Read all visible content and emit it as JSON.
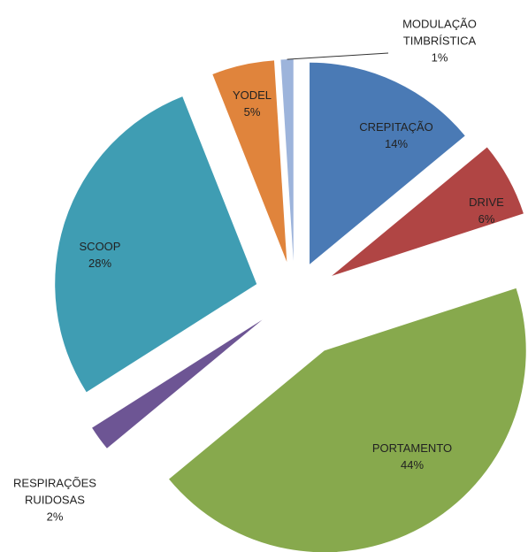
{
  "chart_data": {
    "type": "pie",
    "categories": [
      "CREPITAÇÃO",
      "DRIVE",
      "PORTAMENTO",
      "RESPIRAÇÕES RUIDOSAS",
      "SCOOP",
      "YODEL",
      "MODULAÇÃO TIMBRÍSTICA"
    ],
    "values": [
      14,
      6,
      44,
      2,
      28,
      5,
      1
    ],
    "value_labels": [
      "14%",
      "6%",
      "44%",
      "2%",
      "28%",
      "5%",
      "1%"
    ],
    "colors": [
      "#4a7ab5",
      "#b04544",
      "#87a94d",
      "#6d5594",
      "#3f9db3",
      "#e0843c",
      "#9db4db"
    ]
  }
}
